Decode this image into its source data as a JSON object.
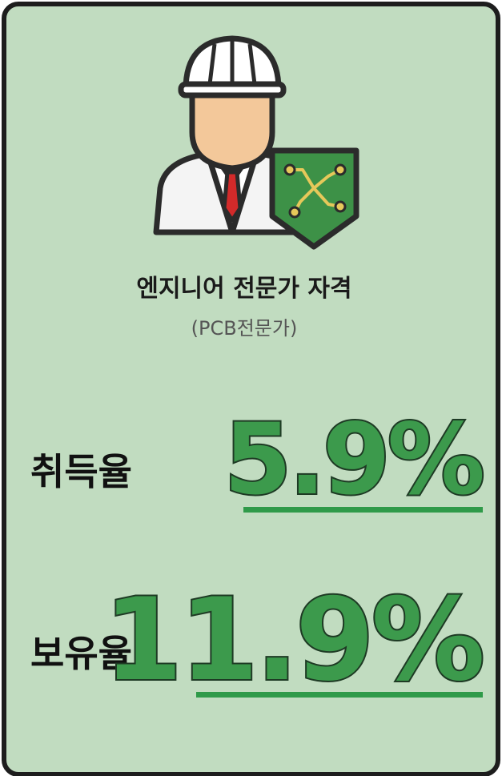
{
  "card": {
    "title": "엔지니어 전문가 자격",
    "subtitle": "(PCB전문가)",
    "stats": [
      {
        "label": "취득율",
        "value": "5.9%"
      },
      {
        "label": "보유율",
        "value": "11.9%"
      }
    ]
  }
}
